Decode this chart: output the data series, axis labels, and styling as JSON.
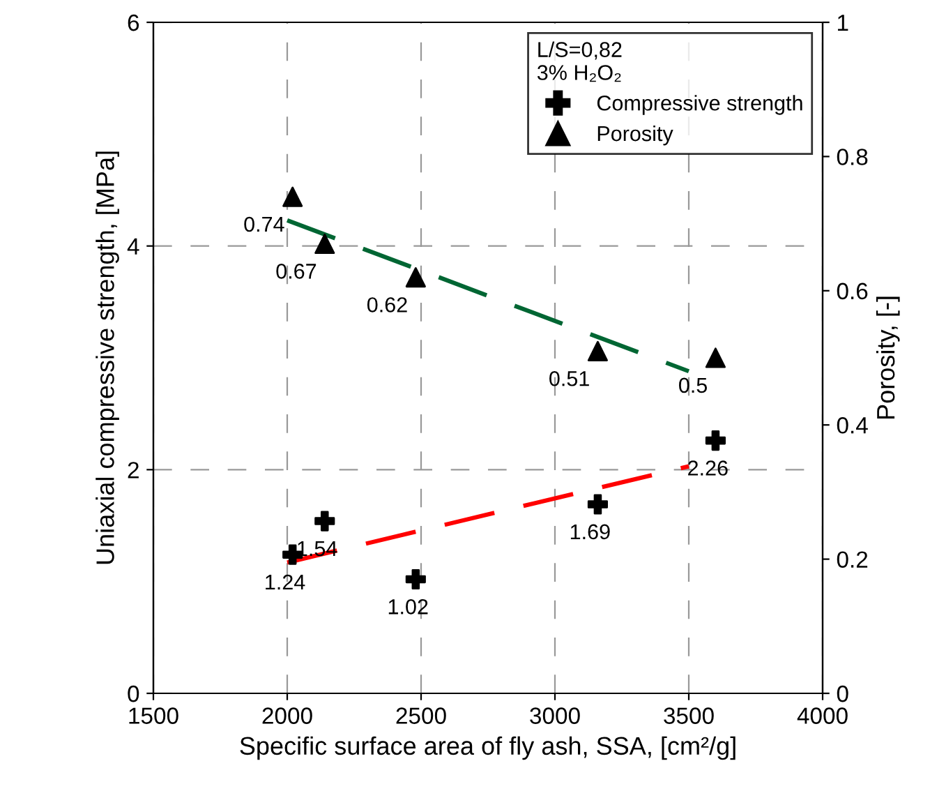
{
  "chart_data": {
    "type": "scatter",
    "xlabel": "Specific surface area of fly ash, SSA, [cm²/g]",
    "ylabel": "Uniaxial compressive strength, [MPa]",
    "y2label": "Porosity, [-]",
    "legend_title": "L/S=0,82\n3% H₂O₂",
    "legend": "top right",
    "grid": true,
    "xlim": [
      1500,
      4000
    ],
    "xticks": [
      1500,
      2000,
      2500,
      3000,
      3500,
      4000
    ],
    "ylim": [
      0,
      6
    ],
    "yticks": [
      0,
      2,
      4,
      6
    ],
    "y2lim": [
      0,
      1
    ],
    "y2ticks": [
      0,
      0.2,
      0.4,
      0.6,
      0.8,
      1
    ],
    "series": [
      {
        "name": "Compressive strength",
        "color": "#000000",
        "marker": "cross",
        "x": [
          2020,
          2140,
          2480,
          3160,
          3600
        ],
        "values": [
          1.24,
          1.54,
          1.02,
          1.69,
          2.26
        ],
        "value_labels": [
          "1.24",
          "1.54",
          "1.02",
          "1.69",
          "2.26"
        ]
      },
      {
        "name": "Porosity",
        "axis": "y2",
        "color": "#000000",
        "marker": "triangle",
        "x": [
          2020,
          2140,
          2480,
          3160,
          3600
        ],
        "values": [
          0.74,
          0.67,
          0.62,
          0.51,
          0.5
        ],
        "value_labels": [
          "0.74",
          "0.67",
          "0.62",
          "0.51",
          "0.5"
        ]
      },
      {
        "type": "line",
        "color": "#ff0000",
        "line_style": "dashed",
        "x": [
          2000,
          3500
        ],
        "values": [
          1.17,
          2.03
        ]
      },
      {
        "type": "line",
        "axis": "y2",
        "color": "#006633",
        "line_style": "dashed",
        "x": [
          2000,
          3500
        ],
        "values": [
          0.705,
          0.48
        ]
      }
    ]
  }
}
